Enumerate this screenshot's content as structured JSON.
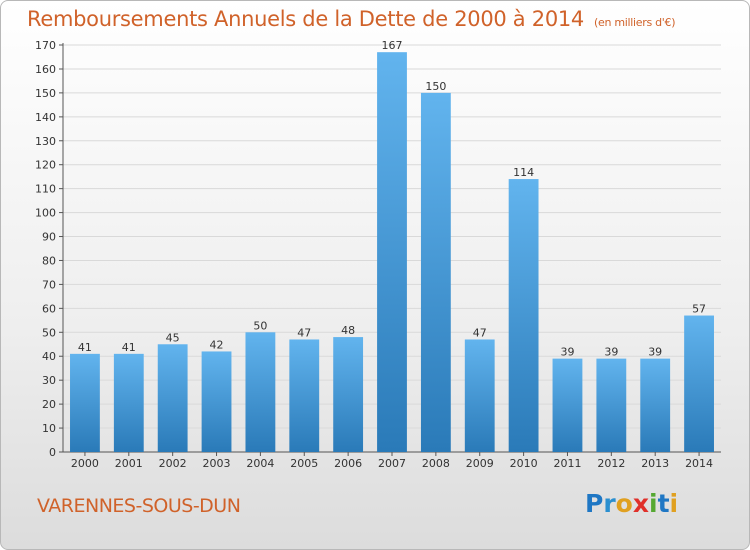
{
  "header": {
    "title": "Remboursements Annuels de la Dette de 2000 à 2014",
    "unit": "(en milliers d'€)"
  },
  "footer": {
    "place": "VARENNES-SOUS-DUN",
    "logo": "Proxiti"
  },
  "colors": {
    "accent": "#d0622a",
    "bar_top": "#62b4ee",
    "bar_bottom": "#2a7ab8",
    "grid": "#d9d9d9"
  },
  "chart_data": {
    "type": "bar",
    "title": "Remboursements Annuels de la Dette de 2000 à 2014",
    "categories": [
      "2000",
      "2001",
      "2002",
      "2003",
      "2004",
      "2005",
      "2006",
      "2007",
      "2008",
      "2009",
      "2010",
      "2011",
      "2012",
      "2013",
      "2014"
    ],
    "values": [
      41,
      41,
      45,
      42,
      50,
      47,
      48,
      167,
      150,
      47,
      114,
      39,
      39,
      39,
      57
    ],
    "ylim": [
      0,
      170
    ],
    "ytick_step": 10,
    "grid": true,
    "data_labels": true
  }
}
